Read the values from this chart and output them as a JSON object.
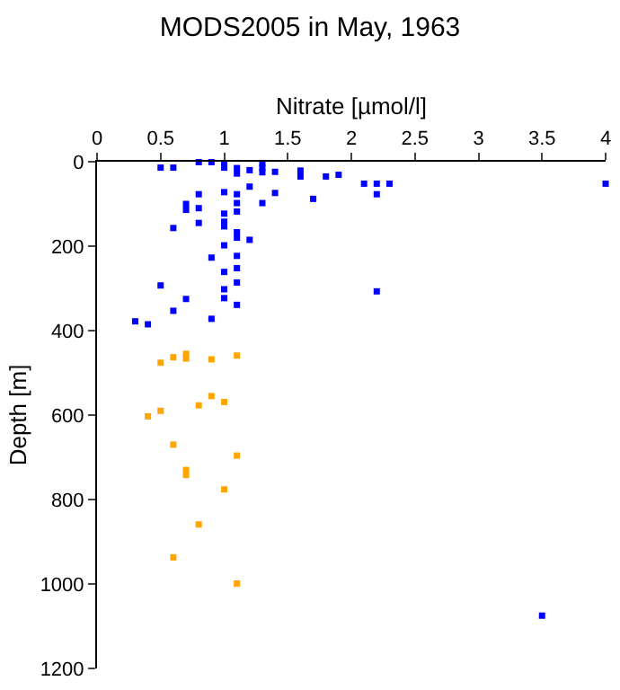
{
  "chart_data": {
    "type": "scatter",
    "title": "MODS2005 in May, 1963",
    "xlabel": "Nitrate [µmol/l]",
    "ylabel": "Depth [m]",
    "xlim": [
      0,
      4
    ],
    "xticks": [
      0,
      0.5,
      1,
      1.5,
      2,
      2.5,
      3,
      3.5,
      4
    ],
    "ylim": [
      1200,
      0
    ],
    "yticks": [
      0,
      200,
      400,
      600,
      800,
      1000,
      1200
    ],
    "grid": false,
    "marker": "square",
    "series": [
      {
        "color": "#0000ff",
        "x": [
          0.5,
          0.6,
          0.8,
          0.9,
          1.0,
          1.0,
          1.1,
          1.1,
          1.2,
          1.3,
          1.3,
          1.3,
          1.4,
          1.6,
          1.6,
          1.8,
          1.9,
          2.1,
          2.2,
          2.3,
          4.0,
          2.2,
          1.7,
          1.4,
          1.2,
          1.1,
          1.0,
          0.8,
          1.3,
          1.1,
          1.1,
          0.7,
          0.7,
          0.8,
          0.8,
          1.0,
          1.0,
          1.0,
          0.6,
          1.1,
          1.1,
          1.2,
          1.0,
          0.9,
          1.1,
          1.1,
          1.0,
          1.1,
          0.5,
          2.2,
          1.0,
          1.0,
          0.7,
          1.1,
          0.6,
          0.9,
          0.3,
          0.4,
          3.5
        ],
        "values": [
          14,
          14,
          1,
          1,
          3,
          14,
          15,
          28,
          20,
          3,
          14,
          25,
          24,
          21,
          35,
          35,
          31,
          52,
          52,
          52,
          52,
          77,
          88,
          74,
          59,
          77,
          72,
          77,
          98,
          98,
          118,
          100,
          114,
          110,
          145,
          123,
          142,
          153,
          157,
          167,
          180,
          185,
          198,
          227,
          223,
          252,
          261,
          286,
          293,
          307,
          302,
          323,
          325,
          339,
          353,
          372,
          378,
          385,
          1075
        ]
      },
      {
        "color": "#ffa500",
        "x": [
          0.5,
          0.6,
          0.7,
          0.7,
          0.9,
          1.1,
          0.9,
          1.0,
          0.8,
          0.5,
          0.4,
          0.6,
          1.1,
          0.7,
          0.7,
          1.0,
          0.8,
          0.6,
          1.1
        ],
        "values": [
          476,
          463,
          455,
          466,
          468,
          459,
          555,
          569,
          577,
          590,
          603,
          670,
          696,
          730,
          742,
          776,
          859,
          937,
          999
        ]
      }
    ]
  }
}
